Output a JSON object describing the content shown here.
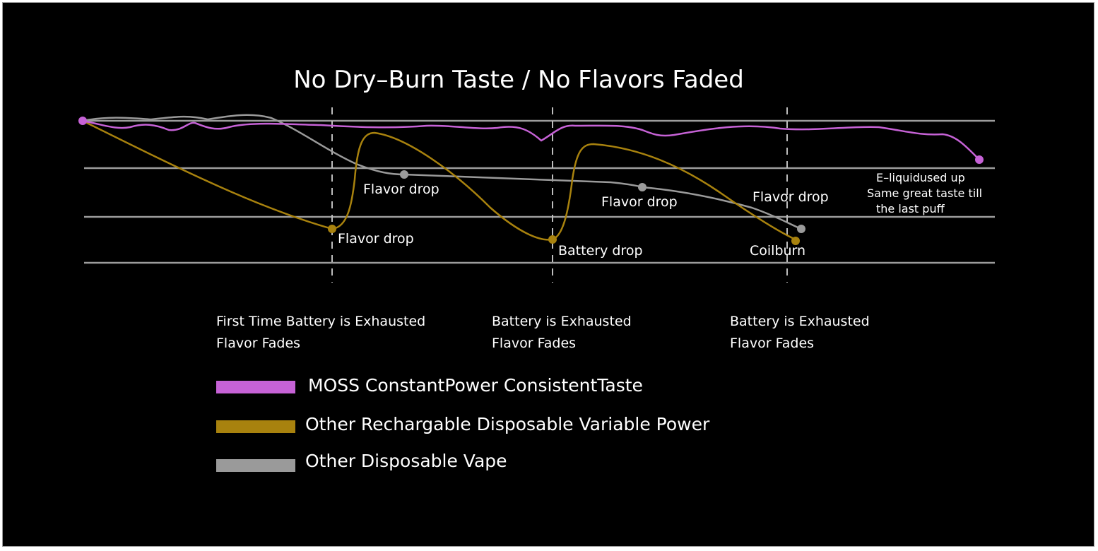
{
  "chart_data": {
    "type": "line",
    "title": "No Dry–Burn Taste / No Flavors Faded",
    "colors": {
      "background": "#000000",
      "grid": "#9c9c9c",
      "text": "#ffffff"
    },
    "series": [
      {
        "name": "MOSS ConstantPower  ConsistentTaste",
        "color": "#c662d6"
      },
      {
        "name": "Other Rechargable  Disposable Variable  Power",
        "color": "#a8820e"
      },
      {
        "name": "Other Disposable Vape",
        "color": "#9a9a9a"
      }
    ],
    "annotations": [
      "Flavor drop",
      "Flavor drop",
      "Flavor drop",
      "Battery drop",
      "Flavor drop",
      "Coilburn",
      "E–liquidused up",
      "Same great taste till",
      "the last puff"
    ],
    "stages": [
      [
        "First Time Battery is Exhausted",
        "Flavor Fades"
      ],
      [
        "Battery is Exhausted",
        "Flavor Fades"
      ],
      [
        "Battery is Exhausted",
        "Flavor Fades"
      ]
    ],
    "legend_position": "bottom-left"
  }
}
